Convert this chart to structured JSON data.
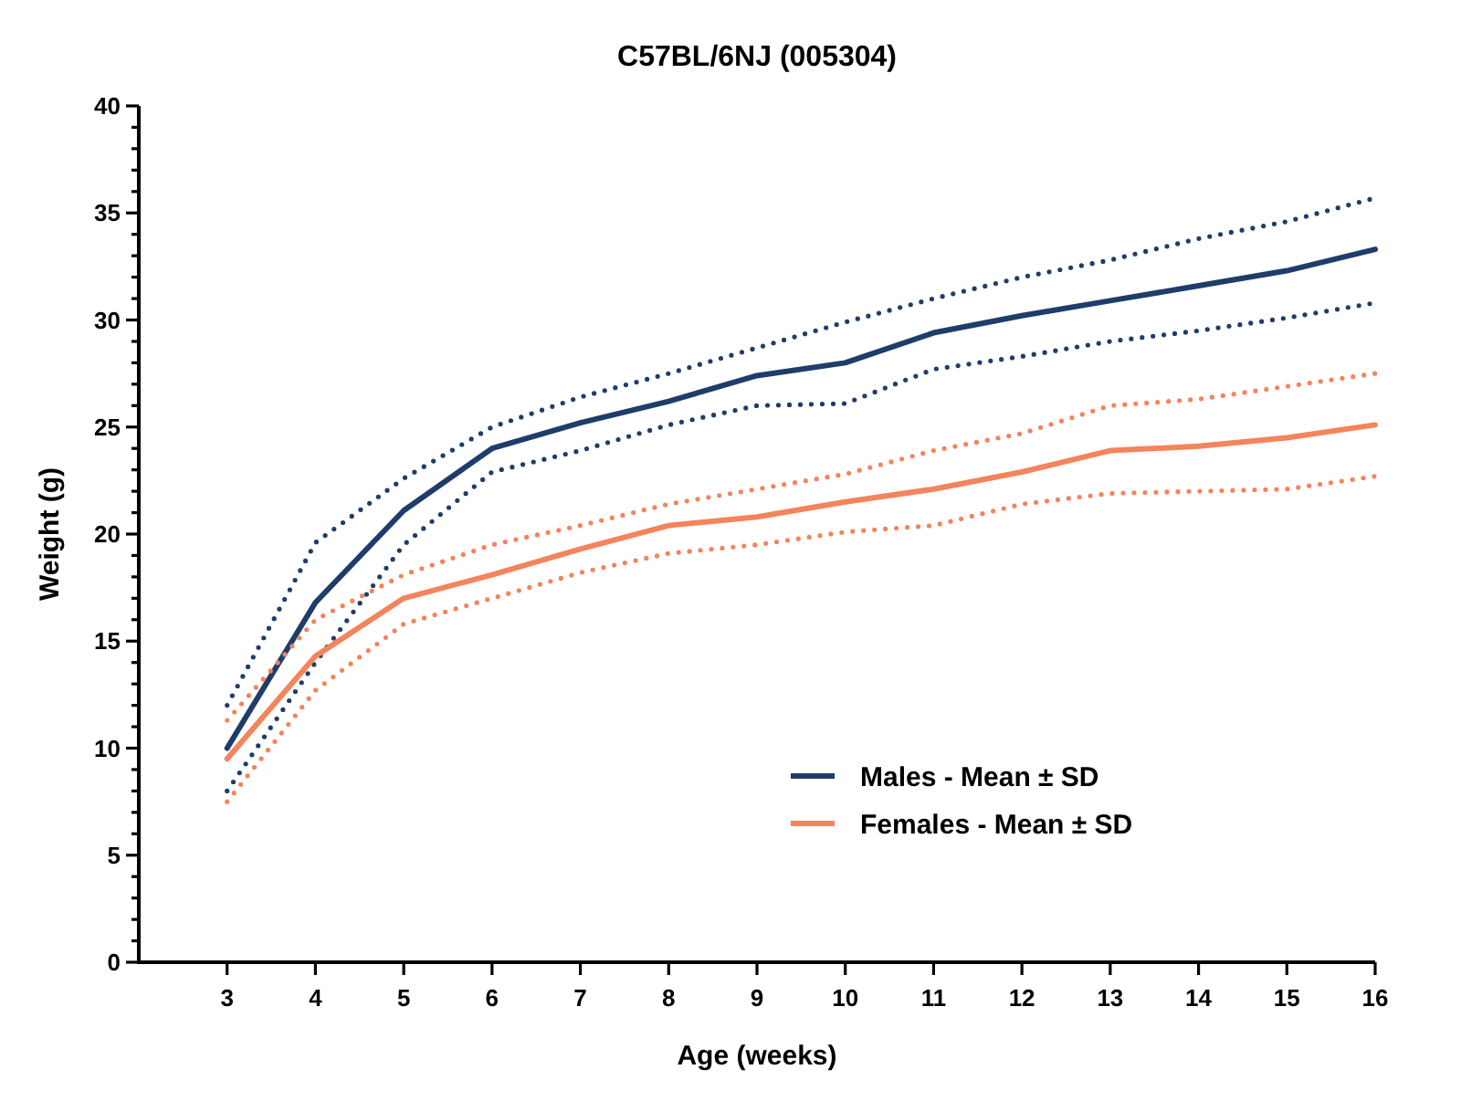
{
  "chart_data": {
    "type": "line",
    "title": "C57BL/6NJ (005304)",
    "xlabel": "Age (weeks)",
    "ylabel": "Weight (g)",
    "x": [
      3,
      4,
      5,
      6,
      7,
      8,
      9,
      10,
      11,
      12,
      13,
      14,
      15,
      16
    ],
    "series": [
      {
        "name": "Males - Mean ± SD",
        "color": "#1f3d6b",
        "line_style": "solid",
        "values": [
          10.0,
          16.8,
          21.1,
          24.0,
          25.2,
          26.2,
          27.4,
          28.0,
          29.4,
          30.2,
          30.9,
          31.6,
          32.3,
          33.3
        ]
      },
      {
        "color": "#1f3d6b",
        "line_style": "dotted",
        "values": [
          12.0,
          19.6,
          22.6,
          25.0,
          26.4,
          27.5,
          28.7,
          29.9,
          31.0,
          32.0,
          32.8,
          33.8,
          34.6,
          35.7
        ]
      },
      {
        "color": "#1f3d6b",
        "line_style": "dotted",
        "values": [
          8.0,
          14.0,
          19.5,
          22.9,
          23.9,
          25.1,
          26.0,
          26.1,
          27.7,
          28.3,
          29.0,
          29.5,
          30.1,
          30.8
        ]
      },
      {
        "name": "Females - Mean ± SD",
        "color": "#f4845c",
        "line_style": "solid",
        "values": [
          9.5,
          14.3,
          17.0,
          18.1,
          19.3,
          20.4,
          20.8,
          21.5,
          22.1,
          22.9,
          23.9,
          24.1,
          24.5,
          25.1
        ]
      },
      {
        "color": "#f4845c",
        "line_style": "dotted",
        "values": [
          11.3,
          16.0,
          18.1,
          19.5,
          20.4,
          21.4,
          22.1,
          22.8,
          23.9,
          24.7,
          26.0,
          26.3,
          26.9,
          27.5
        ]
      },
      {
        "color": "#f4845c",
        "line_style": "dotted",
        "values": [
          7.5,
          12.7,
          15.8,
          17.0,
          18.2,
          19.1,
          19.5,
          20.1,
          20.4,
          21.4,
          21.9,
          22.0,
          22.1,
          22.7
        ]
      }
    ],
    "xlim": [
      2,
      16
    ],
    "xticks": [
      3,
      4,
      5,
      6,
      7,
      8,
      9,
      10,
      11,
      12,
      13,
      14,
      15,
      16
    ],
    "ylim": [
      0,
      40
    ],
    "yticks": [
      0,
      {
        "value": 1,
        "label": null
      },
      {
        "value": 2,
        "label": null
      },
      {
        "value": 3,
        "label": null
      },
      {
        "value": 4,
        "label": null
      },
      5,
      {
        "value": 6,
        "label": null
      },
      {
        "value": 7,
        "label": null
      },
      {
        "value": 8,
        "label": null
      },
      {
        "value": 9,
        "label": null
      },
      10,
      {
        "value": 11,
        "label": null
      },
      {
        "value": 12,
        "label": null
      },
      {
        "value": 13,
        "label": null
      },
      {
        "value": 14,
        "label": null
      },
      15,
      {
        "value": 16,
        "label": null
      },
      {
        "value": 17,
        "label": null
      },
      {
        "value": 18,
        "label": null
      },
      {
        "value": 19,
        "label": null
      },
      20,
      {
        "value": 21,
        "label": null
      },
      {
        "value": 22,
        "label": null
      },
      {
        "value": 23,
        "label": null
      },
      {
        "value": 24,
        "label": null
      },
      25,
      {
        "value": 26,
        "label": null
      },
      {
        "value": 27,
        "label": null
      },
      {
        "value": 28,
        "label": null
      },
      {
        "value": 29,
        "label": null
      },
      30,
      {
        "value": 31,
        "label": null
      },
      {
        "value": 32,
        "label": null
      },
      {
        "value": 33,
        "label": null
      },
      {
        "value": 34,
        "label": null
      },
      35,
      {
        "value": 36,
        "label": null
      },
      {
        "value": 37,
        "label": null
      },
      {
        "value": 38,
        "label": null
      },
      {
        "value": 39,
        "label": null
      },
      40
    ],
    "legend": "bottom right"
  }
}
